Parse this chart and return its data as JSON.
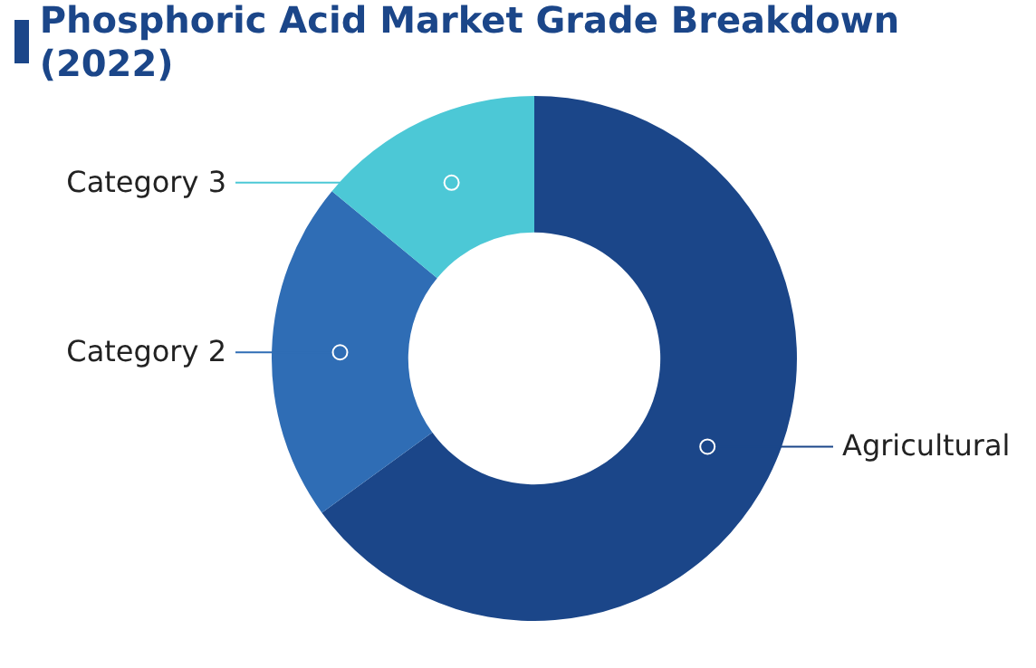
{
  "chart_data": {
    "type": "donut",
    "title": "Phosphoric Acid Market Grade Breakdown (2022)",
    "categories": [
      "Agricultural",
      "Category 2",
      "Category 3"
    ],
    "values": [
      65,
      21,
      14
    ],
    "colors": [
      "#1b4689",
      "#2f6db5",
      "#4cc8d6"
    ],
    "legend": false
  }
}
